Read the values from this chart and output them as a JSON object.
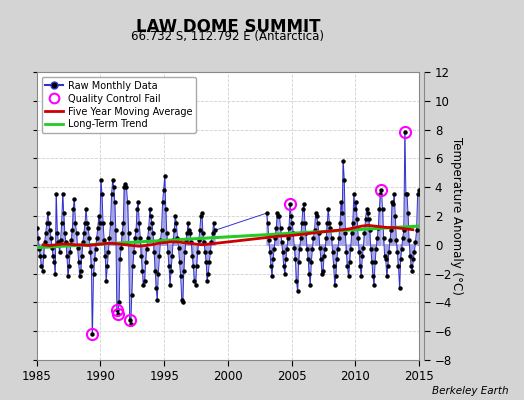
{
  "title": "LAW DOME SUMMIT",
  "subtitle": "66.732 S, 112.792 E (Antarctica)",
  "ylabel": "Temperature Anomaly (°C)",
  "credit": "Berkeley Earth",
  "xlim": [
    1985,
    2015
  ],
  "ylim": [
    -8,
    12
  ],
  "yticks": [
    -8,
    -6,
    -4,
    -2,
    0,
    2,
    4,
    6,
    8,
    10,
    12
  ],
  "xticks": [
    1985,
    1990,
    1995,
    2000,
    2005,
    2010,
    2015
  ],
  "fig_bg": "#d4d4d4",
  "plot_bg": "#ffffff",
  "raw_line_color": "#3333cc",
  "raw_marker_color": "#000000",
  "vline_color": "#8888dd",
  "ma_color": "#cc0000",
  "trend_color": "#22cc22",
  "qc_color": "#ff00ff",
  "raw_data": [
    [
      1985.042,
      1.2
    ],
    [
      1985.125,
      0.5
    ],
    [
      1985.208,
      -0.3
    ],
    [
      1985.292,
      -0.8
    ],
    [
      1985.375,
      -1.5
    ],
    [
      1985.458,
      -1.8
    ],
    [
      1985.542,
      -0.8
    ],
    [
      1985.625,
      0.2
    ],
    [
      1985.708,
      0.8
    ],
    [
      1985.792,
      1.5
    ],
    [
      1985.875,
      2.2
    ],
    [
      1985.958,
      1.5
    ],
    [
      1986.042,
      1.0
    ],
    [
      1986.125,
      0.5
    ],
    [
      1986.208,
      -0.2
    ],
    [
      1986.292,
      -0.8
    ],
    [
      1986.375,
      -1.2
    ],
    [
      1986.458,
      -2.0
    ],
    [
      1986.542,
      3.5
    ],
    [
      1986.625,
      0.8
    ],
    [
      1986.708,
      0.2
    ],
    [
      1986.792,
      -0.5
    ],
    [
      1986.875,
      0.3
    ],
    [
      1986.958,
      1.5
    ],
    [
      1987.042,
      3.5
    ],
    [
      1987.125,
      2.2
    ],
    [
      1987.208,
      0.8
    ],
    [
      1987.292,
      0.2
    ],
    [
      1987.375,
      -0.8
    ],
    [
      1987.458,
      -2.2
    ],
    [
      1987.542,
      -1.5
    ],
    [
      1987.625,
      -0.5
    ],
    [
      1987.708,
      0.3
    ],
    [
      1987.792,
      1.0
    ],
    [
      1987.875,
      2.5
    ],
    [
      1987.958,
      3.2
    ],
    [
      1988.042,
      1.5
    ],
    [
      1988.125,
      0.8
    ],
    [
      1988.208,
      -0.2
    ],
    [
      1988.292,
      -1.2
    ],
    [
      1988.375,
      -2.2
    ],
    [
      1988.458,
      -1.8
    ],
    [
      1988.542,
      -0.8
    ],
    [
      1988.625,
      0.2
    ],
    [
      1988.708,
      0.8
    ],
    [
      1988.792,
      1.5
    ],
    [
      1988.875,
      2.5
    ],
    [
      1988.958,
      1.5
    ],
    [
      1989.042,
      1.2
    ],
    [
      1989.125,
      0.5
    ],
    [
      1989.208,
      -0.5
    ],
    [
      1989.292,
      -1.5
    ],
    [
      1989.375,
      -6.2
    ],
    [
      1989.458,
      -2.0
    ],
    [
      1989.542,
      -1.0
    ],
    [
      1989.625,
      -0.3
    ],
    [
      1989.708,
      0.5
    ],
    [
      1989.792,
      1.2
    ],
    [
      1989.875,
      2.0
    ],
    [
      1989.958,
      1.5
    ],
    [
      1990.042,
      4.5
    ],
    [
      1990.125,
      3.5
    ],
    [
      1990.208,
      1.5
    ],
    [
      1990.292,
      0.3
    ],
    [
      1990.375,
      -0.8
    ],
    [
      1990.458,
      -2.5
    ],
    [
      1990.542,
      -1.5
    ],
    [
      1990.625,
      -0.5
    ],
    [
      1990.708,
      0.5
    ],
    [
      1990.792,
      1.5
    ],
    [
      1990.875,
      3.5
    ],
    [
      1990.958,
      4.5
    ],
    [
      1991.042,
      4.0
    ],
    [
      1991.125,
      3.0
    ],
    [
      1991.208,
      1.0
    ],
    [
      1991.292,
      -4.5
    ],
    [
      1991.375,
      -4.8
    ],
    [
      1991.458,
      -4.0
    ],
    [
      1991.542,
      -1.0
    ],
    [
      1991.625,
      -0.2
    ],
    [
      1991.708,
      0.8
    ],
    [
      1991.792,
      1.5
    ],
    [
      1991.875,
      4.0
    ],
    [
      1991.958,
      4.2
    ],
    [
      1992.042,
      4.0
    ],
    [
      1992.125,
      3.0
    ],
    [
      1992.208,
      0.8
    ],
    [
      1992.292,
      -5.2
    ],
    [
      1992.375,
      -5.5
    ],
    [
      1992.458,
      -3.5
    ],
    [
      1992.542,
      -1.5
    ],
    [
      1992.625,
      -0.5
    ],
    [
      1992.708,
      0.5
    ],
    [
      1992.792,
      1.0
    ],
    [
      1992.875,
      2.5
    ],
    [
      1992.958,
      3.0
    ],
    [
      1993.042,
      1.5
    ],
    [
      1993.125,
      0.5
    ],
    [
      1993.208,
      -0.8
    ],
    [
      1993.292,
      -1.8
    ],
    [
      1993.375,
      -2.8
    ],
    [
      1993.458,
      -2.5
    ],
    [
      1993.542,
      -1.2
    ],
    [
      1993.625,
      -0.3
    ],
    [
      1993.708,
      0.5
    ],
    [
      1993.792,
      1.2
    ],
    [
      1993.875,
      2.5
    ],
    [
      1993.958,
      2.0
    ],
    [
      1994.042,
      1.5
    ],
    [
      1994.125,
      0.8
    ],
    [
      1994.208,
      -0.5
    ],
    [
      1994.292,
      -1.8
    ],
    [
      1994.375,
      -3.0
    ],
    [
      1994.458,
      -3.8
    ],
    [
      1994.542,
      -2.0
    ],
    [
      1994.625,
      -0.8
    ],
    [
      1994.708,
      0.3
    ],
    [
      1994.792,
      1.0
    ],
    [
      1994.875,
      3.0
    ],
    [
      1994.958,
      3.8
    ],
    [
      1995.042,
      4.8
    ],
    [
      1995.125,
      2.5
    ],
    [
      1995.208,
      0.8
    ],
    [
      1995.292,
      -0.5
    ],
    [
      1995.375,
      -1.5
    ],
    [
      1995.458,
      -2.8
    ],
    [
      1995.542,
      -1.8
    ],
    [
      1995.625,
      -0.8
    ],
    [
      1995.708,
      0.3
    ],
    [
      1995.792,
      1.0
    ],
    [
      1995.875,
      2.0
    ],
    [
      1995.958,
      1.5
    ],
    [
      1996.042,
      0.5
    ],
    [
      1996.125,
      -0.2
    ],
    [
      1996.208,
      -1.2
    ],
    [
      1996.292,
      -2.2
    ],
    [
      1996.375,
      -3.8
    ],
    [
      1996.458,
      -4.0
    ],
    [
      1996.542,
      -1.8
    ],
    [
      1996.625,
      -0.5
    ],
    [
      1996.708,
      0.3
    ],
    [
      1996.792,
      0.8
    ],
    [
      1996.875,
      1.5
    ],
    [
      1996.958,
      1.0
    ],
    [
      1997.042,
      0.8
    ],
    [
      1997.125,
      0.2
    ],
    [
      1997.208,
      -0.8
    ],
    [
      1997.292,
      -1.5
    ],
    [
      1997.375,
      -2.5
    ],
    [
      1997.458,
      -2.8
    ],
    [
      1997.542,
      -1.5
    ],
    [
      1997.625,
      -0.5
    ],
    [
      1997.708,
      0.3
    ],
    [
      1997.792,
      1.0
    ],
    [
      1997.875,
      2.0
    ],
    [
      1997.958,
      2.2
    ],
    [
      1998.042,
      0.8
    ],
    [
      1998.125,
      0.2
    ],
    [
      1998.208,
      -0.5
    ],
    [
      1998.292,
      -1.2
    ],
    [
      1998.375,
      -2.5
    ],
    [
      1998.458,
      -2.0
    ],
    [
      1998.542,
      -1.2
    ],
    [
      1998.625,
      -0.5
    ],
    [
      1998.708,
      0.2
    ],
    [
      1998.792,
      0.8
    ],
    [
      1998.875,
      1.5
    ],
    [
      1998.958,
      1.0
    ],
    [
      2003.042,
      2.2
    ],
    [
      2003.125,
      1.5
    ],
    [
      2003.208,
      0.3
    ],
    [
      2003.292,
      -0.5
    ],
    [
      2003.375,
      -1.5
    ],
    [
      2003.458,
      -2.2
    ],
    [
      2003.542,
      -1.0
    ],
    [
      2003.625,
      -0.3
    ],
    [
      2003.708,
      0.5
    ],
    [
      2003.792,
      1.2
    ],
    [
      2003.875,
      2.2
    ],
    [
      2003.958,
      2.0
    ],
    [
      2004.042,
      2.0
    ],
    [
      2004.125,
      1.2
    ],
    [
      2004.208,
      0.2
    ],
    [
      2004.292,
      -0.5
    ],
    [
      2004.375,
      -1.5
    ],
    [
      2004.458,
      -2.0
    ],
    [
      2004.542,
      -1.0
    ],
    [
      2004.625,
      -0.3
    ],
    [
      2004.708,
      0.5
    ],
    [
      2004.792,
      1.2
    ],
    [
      2004.875,
      2.8
    ],
    [
      2004.958,
      2.0
    ],
    [
      2005.042,
      1.5
    ],
    [
      2005.125,
      0.8
    ],
    [
      2005.208,
      -0.2
    ],
    [
      2005.292,
      -1.0
    ],
    [
      2005.375,
      -2.5
    ],
    [
      2005.458,
      -3.2
    ],
    [
      2005.542,
      -1.2
    ],
    [
      2005.625,
      -0.3
    ],
    [
      2005.708,
      0.5
    ],
    [
      2005.792,
      1.5
    ],
    [
      2005.875,
      2.5
    ],
    [
      2005.958,
      2.8
    ],
    [
      2006.042,
      1.5
    ],
    [
      2006.125,
      0.8
    ],
    [
      2006.208,
      -0.3
    ],
    [
      2006.292,
      -1.0
    ],
    [
      2006.375,
      -2.0
    ],
    [
      2006.458,
      -2.8
    ],
    [
      2006.542,
      -1.2
    ],
    [
      2006.625,
      -0.3
    ],
    [
      2006.708,
      0.5
    ],
    [
      2006.792,
      1.0
    ],
    [
      2006.875,
      2.2
    ],
    [
      2006.958,
      2.0
    ],
    [
      2007.042,
      1.5
    ],
    [
      2007.125,
      0.8
    ],
    [
      2007.208,
      -0.2
    ],
    [
      2007.292,
      -1.0
    ],
    [
      2007.375,
      -2.0
    ],
    [
      2007.458,
      -1.8
    ],
    [
      2007.542,
      -0.8
    ],
    [
      2007.625,
      -0.3
    ],
    [
      2007.708,
      0.5
    ],
    [
      2007.792,
      1.5
    ],
    [
      2007.875,
      2.5
    ],
    [
      2007.958,
      1.5
    ],
    [
      2008.042,
      1.2
    ],
    [
      2008.125,
      0.5
    ],
    [
      2008.208,
      -0.5
    ],
    [
      2008.292,
      -1.5
    ],
    [
      2008.375,
      -2.8
    ],
    [
      2008.458,
      -2.2
    ],
    [
      2008.542,
      -1.0
    ],
    [
      2008.625,
      -0.3
    ],
    [
      2008.708,
      0.5
    ],
    [
      2008.792,
      1.5
    ],
    [
      2008.875,
      3.0
    ],
    [
      2008.958,
      2.2
    ],
    [
      2009.042,
      5.8
    ],
    [
      2009.125,
      4.5
    ],
    [
      2009.208,
      0.8
    ],
    [
      2009.292,
      -0.5
    ],
    [
      2009.375,
      -1.5
    ],
    [
      2009.458,
      -2.2
    ],
    [
      2009.542,
      -1.2
    ],
    [
      2009.625,
      -0.3
    ],
    [
      2009.708,
      0.8
    ],
    [
      2009.792,
      1.5
    ],
    [
      2009.875,
      3.5
    ],
    [
      2009.958,
      2.5
    ],
    [
      2010.042,
      3.0
    ],
    [
      2010.125,
      1.8
    ],
    [
      2010.208,
      0.5
    ],
    [
      2010.292,
      -0.5
    ],
    [
      2010.375,
      -1.5
    ],
    [
      2010.458,
      -2.2
    ],
    [
      2010.542,
      -0.8
    ],
    [
      2010.625,
      -0.2
    ],
    [
      2010.708,
      0.8
    ],
    [
      2010.792,
      1.8
    ],
    [
      2010.875,
      2.5
    ],
    [
      2010.958,
      2.2
    ],
    [
      2011.042,
      1.8
    ],
    [
      2011.125,
      1.0
    ],
    [
      2011.208,
      -0.3
    ],
    [
      2011.292,
      -1.2
    ],
    [
      2011.375,
      -2.2
    ],
    [
      2011.458,
      -2.8
    ],
    [
      2011.542,
      -1.2
    ],
    [
      2011.625,
      -0.3
    ],
    [
      2011.708,
      0.5
    ],
    [
      2011.792,
      1.2
    ],
    [
      2011.875,
      2.5
    ],
    [
      2011.958,
      3.5
    ],
    [
      2012.042,
      3.8
    ],
    [
      2012.125,
      2.5
    ],
    [
      2012.208,
      0.5
    ],
    [
      2012.292,
      -0.8
    ],
    [
      2012.375,
      -1.0
    ],
    [
      2012.458,
      -2.2
    ],
    [
      2012.542,
      -1.5
    ],
    [
      2012.625,
      -0.5
    ],
    [
      2012.708,
      0.3
    ],
    [
      2012.792,
      1.0
    ],
    [
      2012.875,
      3.0
    ],
    [
      2012.958,
      2.8
    ],
    [
      2013.042,
      3.5
    ],
    [
      2013.125,
      2.0
    ],
    [
      2013.208,
      0.3
    ],
    [
      2013.292,
      -0.5
    ],
    [
      2013.375,
      -1.5
    ],
    [
      2013.458,
      -3.0
    ],
    [
      2013.542,
      -1.0
    ],
    [
      2013.625,
      -0.3
    ],
    [
      2013.708,
      0.5
    ],
    [
      2013.792,
      1.0
    ],
    [
      2013.875,
      7.8
    ],
    [
      2013.958,
      3.5
    ],
    [
      2014.042,
      3.5
    ],
    [
      2014.125,
      2.2
    ],
    [
      2014.208,
      0.3
    ],
    [
      2014.292,
      -0.8
    ],
    [
      2014.375,
      -1.5
    ],
    [
      2014.458,
      -1.8
    ],
    [
      2014.542,
      -1.0
    ],
    [
      2014.625,
      -0.5
    ],
    [
      2014.708,
      0.2
    ],
    [
      2014.792,
      1.0
    ],
    [
      2014.875,
      3.5
    ],
    [
      2014.958,
      3.8
    ]
  ],
  "qc_fail_points": [
    [
      1989.375,
      -6.2
    ],
    [
      1991.292,
      -4.5
    ],
    [
      1991.375,
      -4.8
    ],
    [
      1992.292,
      -5.2
    ],
    [
      2004.875,
      2.8
    ],
    [
      2012.042,
      3.8
    ],
    [
      2013.875,
      7.8
    ]
  ],
  "moving_avg": [
    [
      1985.5,
      0.0
    ],
    [
      1986.0,
      -0.05
    ],
    [
      1986.5,
      0.0
    ],
    [
      1987.0,
      0.05
    ],
    [
      1987.5,
      0.05
    ],
    [
      1988.0,
      0.0
    ],
    [
      1988.5,
      0.0
    ],
    [
      1989.0,
      -0.05
    ],
    [
      1989.5,
      0.0
    ],
    [
      1990.0,
      0.05
    ],
    [
      1990.5,
      0.1
    ],
    [
      1991.0,
      0.1
    ],
    [
      1991.5,
      0.05
    ],
    [
      1992.0,
      0.0
    ],
    [
      1992.5,
      -0.05
    ],
    [
      1993.0,
      -0.1
    ],
    [
      1993.5,
      -0.05
    ],
    [
      1994.0,
      0.0
    ],
    [
      1994.5,
      0.1
    ],
    [
      1995.0,
      0.15
    ],
    [
      1995.5,
      0.2
    ],
    [
      1996.0,
      0.2
    ],
    [
      1996.5,
      0.15
    ],
    [
      1997.0,
      0.1
    ],
    [
      1997.5,
      0.05
    ],
    [
      1998.0,
      0.0
    ],
    [
      2003.0,
      0.5
    ],
    [
      2003.5,
      0.55
    ],
    [
      2004.0,
      0.6
    ],
    [
      2004.5,
      0.62
    ],
    [
      2005.0,
      0.65
    ],
    [
      2005.5,
      0.7
    ],
    [
      2006.0,
      0.75
    ],
    [
      2006.5,
      0.8
    ],
    [
      2007.0,
      0.85
    ],
    [
      2007.5,
      0.9
    ],
    [
      2008.0,
      0.95
    ],
    [
      2008.5,
      1.0
    ],
    [
      2009.0,
      1.05
    ],
    [
      2009.5,
      1.1
    ],
    [
      2010.0,
      1.2
    ],
    [
      2010.5,
      1.3
    ],
    [
      2011.0,
      1.35
    ],
    [
      2011.5,
      1.3
    ],
    [
      2012.0,
      1.25
    ],
    [
      2012.5,
      1.2
    ],
    [
      2013.0,
      1.2
    ],
    [
      2013.5,
      1.15
    ],
    [
      2014.0,
      1.1
    ],
    [
      2014.5,
      1.05
    ]
  ],
  "trend_x": [
    1985,
    2015
  ],
  "trend_y": [
    -0.2,
    1.3
  ]
}
